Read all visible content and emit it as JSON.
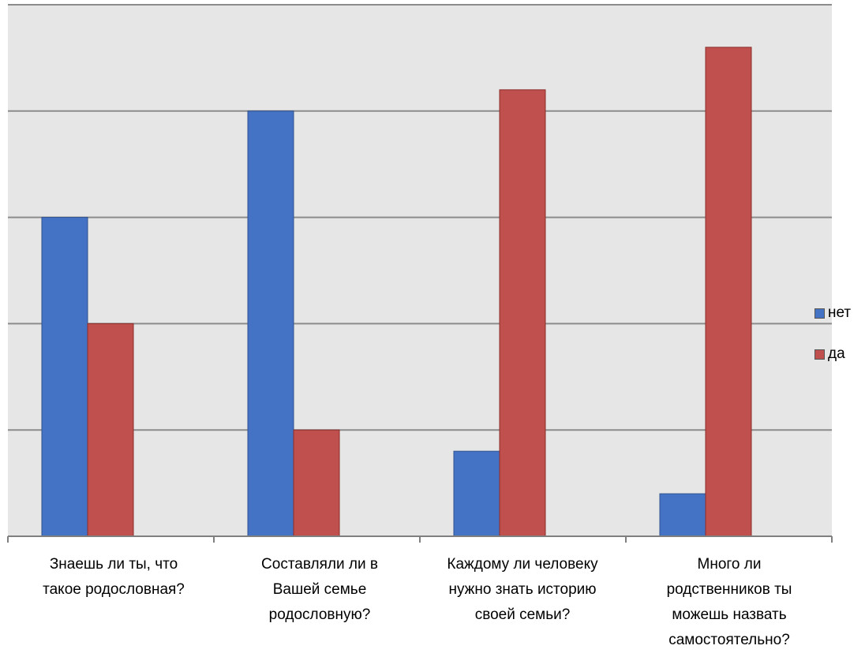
{
  "chart_data": {
    "type": "bar",
    "categories": [
      "Знаешь ли ты, что\nтакое родословная?",
      "Составляли ли в\nВашей семье\nродословную?",
      "Каждому ли человеку\nнужно знать историю\nсвоей семьи?",
      "Много ли\nродственников ты\nможешь назвать\nсамостоятельно?"
    ],
    "series": [
      {
        "name": "нет",
        "color": "#4472C4",
        "values": [
          3.0,
          4.0,
          0.8,
          0.4
        ]
      },
      {
        "name": "да",
        "color": "#C0504D",
        "values": [
          2.0,
          1.0,
          4.2,
          4.6
        ]
      }
    ],
    "ylim": [
      0,
      5
    ],
    "grid": true,
    "legend": "right",
    "plot_background": "#E6E6E6"
  }
}
